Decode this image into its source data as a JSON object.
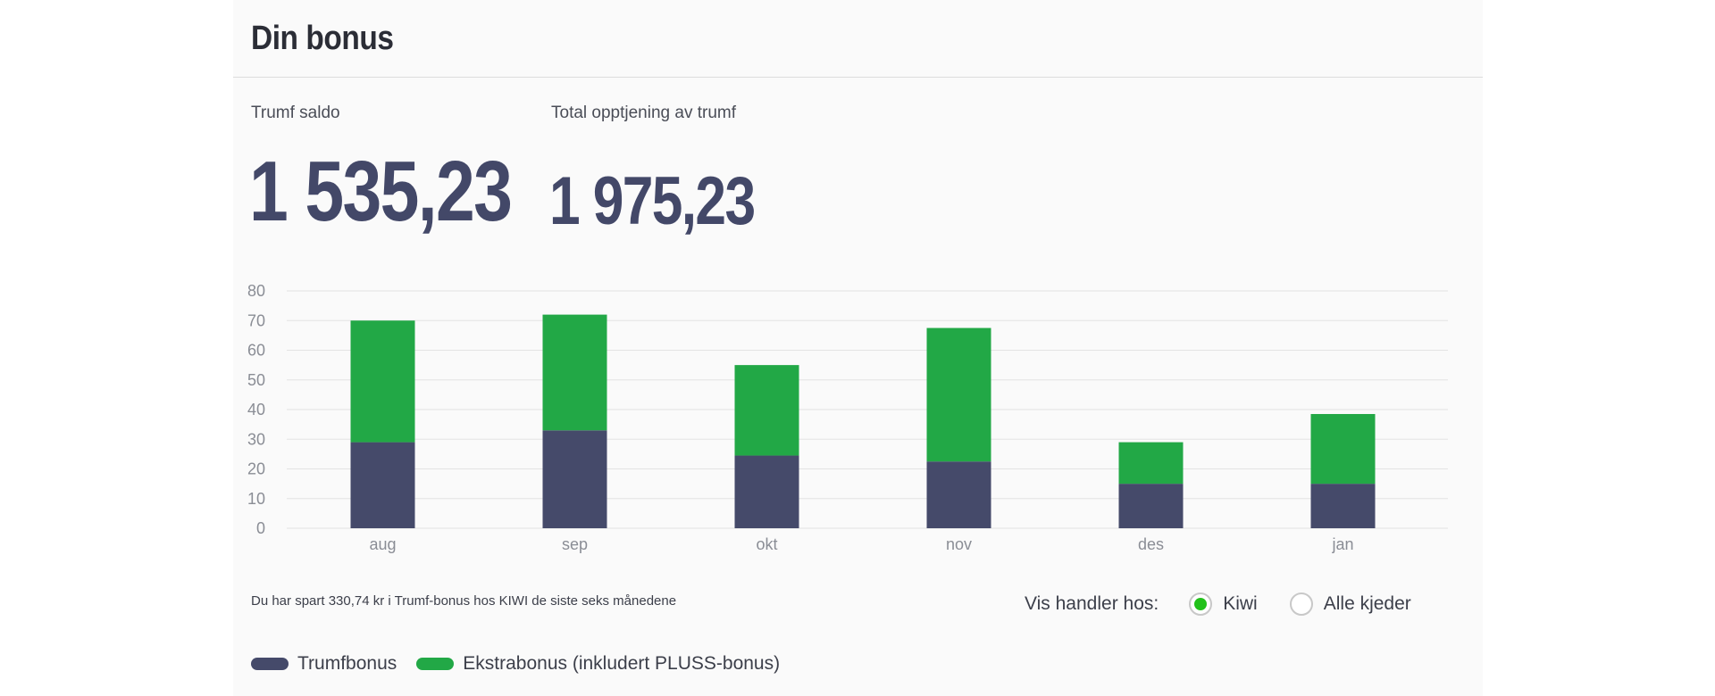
{
  "header": {
    "title": "Din bonus"
  },
  "stats": {
    "saldo_label": "Trumf saldo",
    "saldo_value": "1 535,23",
    "total_label": "Total opptjening av trumf",
    "total_value": "1 975,23"
  },
  "colors": {
    "trumfbonus": "#454a6a",
    "ekstrabonus": "#22a846",
    "radio_selected": "#22c11a"
  },
  "chart_data": {
    "type": "bar",
    "stacked": true,
    "categories": [
      "aug",
      "sep",
      "okt",
      "nov",
      "des",
      "jan"
    ],
    "series": [
      {
        "name": "Trumfbonus",
        "values": [
          29,
          33,
          24.5,
          22.5,
          15,
          15
        ]
      },
      {
        "name": "Ekstrabonus (inkludert PLUSS-bonus)",
        "values": [
          41,
          39,
          30.5,
          45,
          14,
          23.5
        ]
      }
    ],
    "y_ticks": [
      0,
      10,
      20,
      30,
      40,
      50,
      60,
      70,
      80
    ],
    "ylim": [
      0,
      80
    ],
    "grid": true,
    "legend_position": "bottom-left"
  },
  "footnote": "Du har spart 330,74 kr i Trumf-bonus hos KIWI de siste seks månedene",
  "filter": {
    "label": "Vis handler hos:",
    "options": [
      {
        "label": "Kiwi",
        "selected": true
      },
      {
        "label": "Alle kjeder",
        "selected": false
      }
    ]
  },
  "legend": [
    {
      "label": "Trumfbonus",
      "icon": "pill-swatch-navy"
    },
    {
      "label": "Ekstrabonus (inkludert PLUSS-bonus)",
      "icon": "pill-swatch-green"
    }
  ]
}
